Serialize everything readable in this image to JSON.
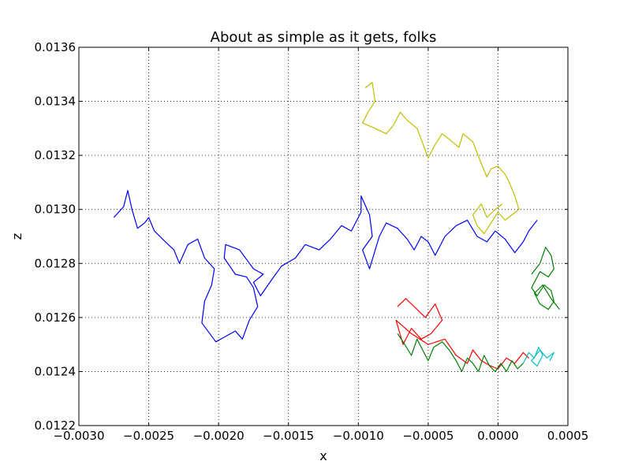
{
  "chart_data": {
    "type": "line",
    "title": "About as simple as it gets, folks",
    "xlabel": "x",
    "ylabel": "z",
    "xlim": [
      -0.003,
      0.0005
    ],
    "ylim": [
      0.0122,
      0.0136
    ],
    "grid": true,
    "legend": "none",
    "x_ticks": [
      -0.003,
      -0.0025,
      -0.002,
      -0.0015,
      -0.001,
      -0.0005,
      0.0,
      0.0005
    ],
    "x_tick_labels": [
      "−0.0030",
      "−0.0025",
      "−0.0020",
      "−0.0015",
      "−0.0010",
      "−0.0005",
      "0.0000",
      "0.0005"
    ],
    "y_ticks": [
      0.0122,
      0.0124,
      0.0126,
      0.0128,
      0.013,
      0.0132,
      0.0134,
      0.0136
    ],
    "y_tick_labels": [
      "0.0122",
      "0.0124",
      "0.0126",
      "0.0128",
      "0.0130",
      "0.0132",
      "0.0134",
      "0.0136"
    ],
    "series": [
      {
        "color": "#0000ff",
        "x": [
          -0.00275,
          -0.00268,
          -0.00265,
          -0.00262,
          -0.00258,
          -0.00253,
          -0.0025,
          -0.00246,
          -0.00238,
          -0.00232,
          -0.00228,
          -0.00222,
          -0.00215,
          -0.0021,
          -0.00203,
          -0.00205,
          -0.0021,
          -0.00212,
          -0.00202,
          -0.00195,
          -0.00188,
          -0.00183,
          -0.00178,
          -0.00172,
          -0.00175,
          -0.0018,
          -0.00188,
          -0.00196,
          -0.00195,
          -0.00185,
          -0.00175,
          -0.00168,
          -0.00175,
          -0.0017,
          -0.00162,
          -0.00155,
          -0.00145,
          -0.00138,
          -0.00128,
          -0.0012,
          -0.00112,
          -0.00105,
          -0.00098,
          -0.00098,
          -0.00092,
          -0.0009,
          -0.00097,
          -0.00092,
          -0.00085,
          -0.0008,
          -0.00072,
          -0.00065,
          -0.0006,
          -0.00055,
          -0.0005,
          -0.00045,
          -0.00038,
          -0.0003,
          -0.00022,
          -0.00015,
          -8e-05,
          -2e-05,
          5e-05,
          0.00012,
          0.00018,
          0.00022,
          0.00025,
          0.00028
        ],
        "y": [
          0.01297,
          0.01301,
          0.01307,
          0.013,
          0.01293,
          0.01295,
          0.01297,
          0.01292,
          0.01288,
          0.01285,
          0.0128,
          0.01287,
          0.01289,
          0.01282,
          0.01278,
          0.01272,
          0.01266,
          0.01258,
          0.01251,
          0.01253,
          0.01255,
          0.01252,
          0.01259,
          0.01264,
          0.01271,
          0.01275,
          0.01276,
          0.01282,
          0.01287,
          0.01285,
          0.01278,
          0.01276,
          0.01273,
          0.01268,
          0.01274,
          0.01279,
          0.01282,
          0.01287,
          0.01285,
          0.01289,
          0.01294,
          0.01292,
          0.01299,
          0.01305,
          0.01298,
          0.0129,
          0.01285,
          0.01278,
          0.0129,
          0.01295,
          0.01293,
          0.01289,
          0.01285,
          0.0129,
          0.01288,
          0.01283,
          0.0129,
          0.01294,
          0.01296,
          0.0129,
          0.01288,
          0.01292,
          0.01289,
          0.01284,
          0.01288,
          0.01292,
          0.01294,
          0.01296
        ]
      },
      {
        "color": "#bfbf00",
        "x": [
          -0.00095,
          -0.0009,
          -0.00088,
          -0.00093,
          -0.00097,
          -0.00088,
          -0.0008,
          -0.00075,
          -0.0007,
          -0.00065,
          -0.00058,
          -0.00055,
          -0.0005,
          -0.00045,
          -0.0004,
          -0.00035,
          -0.00028,
          -0.00025,
          -0.00018,
          -0.00012,
          -8e-05,
          -5e-05,
          0.0,
          5e-05,
          8e-05,
          0.00012,
          0.00015,
          0.0001,
          5e-05,
          0.0,
          -5e-05,
          -0.0001,
          -0.00015,
          -0.00018,
          -0.00012,
          -8e-05,
          -2e-05,
          3e-05
        ],
        "y": [
          0.01345,
          0.01347,
          0.0134,
          0.01336,
          0.01332,
          0.0133,
          0.01328,
          0.01331,
          0.01336,
          0.01333,
          0.0133,
          0.01326,
          0.01319,
          0.01324,
          0.01328,
          0.01326,
          0.01323,
          0.01328,
          0.01325,
          0.01317,
          0.01312,
          0.01315,
          0.01316,
          0.01313,
          0.0131,
          0.01305,
          0.013,
          0.01298,
          0.01296,
          0.01299,
          0.01295,
          0.01291,
          0.01294,
          0.01298,
          0.01302,
          0.01297,
          0.013,
          0.01302
        ]
      },
      {
        "color": "#ff0000",
        "x": [
          -0.00072,
          -0.00066,
          -0.00058,
          -0.00052,
          -0.00045,
          -0.0004,
          -0.00048,
          -0.00055,
          -0.00062,
          -0.00068,
          -0.00073,
          -0.00062,
          -0.0005,
          -0.00038,
          -0.0003,
          -0.00022,
          -0.00018,
          -0.00012,
          -5e-05,
          0.0,
          6e-05,
          0.00012,
          0.00018,
          0.00022
        ],
        "y": [
          0.01264,
          0.01267,
          0.01263,
          0.0126,
          0.01265,
          0.01259,
          0.01254,
          0.01252,
          0.01256,
          0.0125,
          0.01259,
          0.01254,
          0.0125,
          0.01252,
          0.01246,
          0.01243,
          0.01248,
          0.01244,
          0.01242,
          0.01241,
          0.01245,
          0.01243,
          0.01247,
          0.01245
        ]
      },
      {
        "color": "#008000",
        "x": [
          -0.00072,
          -0.00068,
          -0.00062,
          -0.00058,
          -0.00054,
          -0.0005,
          -0.00046,
          -0.0004,
          -0.00035,
          -0.0003,
          -0.00026,
          -0.00022,
          -0.00018,
          -0.00014,
          -0.0001,
          -6e-05,
          -2e-05,
          2e-05,
          6e-05,
          0.0001,
          0.00014,
          0.00018
        ],
        "y": [
          0.01254,
          0.01251,
          0.01246,
          0.01252,
          0.01248,
          0.01244,
          0.01249,
          0.01251,
          0.01248,
          0.01244,
          0.0124,
          0.01245,
          0.01243,
          0.0124,
          0.01246,
          0.01242,
          0.0124,
          0.01243,
          0.0124,
          0.01244,
          0.01241,
          0.01243
        ]
      },
      {
        "color": "#008000",
        "x": [
          0.00024,
          0.0003,
          0.00034,
          0.00038,
          0.0004,
          0.00036,
          0.0003,
          0.00024,
          0.00028,
          0.00033,
          0.00038,
          0.0004,
          0.00036,
          0.0003,
          0.00026,
          0.00032,
          0.00038,
          0.00044
        ],
        "y": [
          0.01276,
          0.0128,
          0.01286,
          0.01283,
          0.01278,
          0.01275,
          0.01277,
          0.01271,
          0.01268,
          0.01272,
          0.0127,
          0.01266,
          0.01263,
          0.01265,
          0.01269,
          0.01272,
          0.01267,
          0.01263
        ]
      },
      {
        "color": "#00bfbf",
        "x": [
          0.00018,
          0.00022,
          0.00026,
          0.00029,
          0.00032,
          0.00028,
          0.00024,
          0.0003,
          0.00035,
          0.0004,
          0.00037
        ],
        "y": [
          0.01243,
          0.01247,
          0.01245,
          0.01249,
          0.01246,
          0.01242,
          0.01244,
          0.01248,
          0.01245,
          0.01247,
          0.01244
        ]
      }
    ]
  }
}
